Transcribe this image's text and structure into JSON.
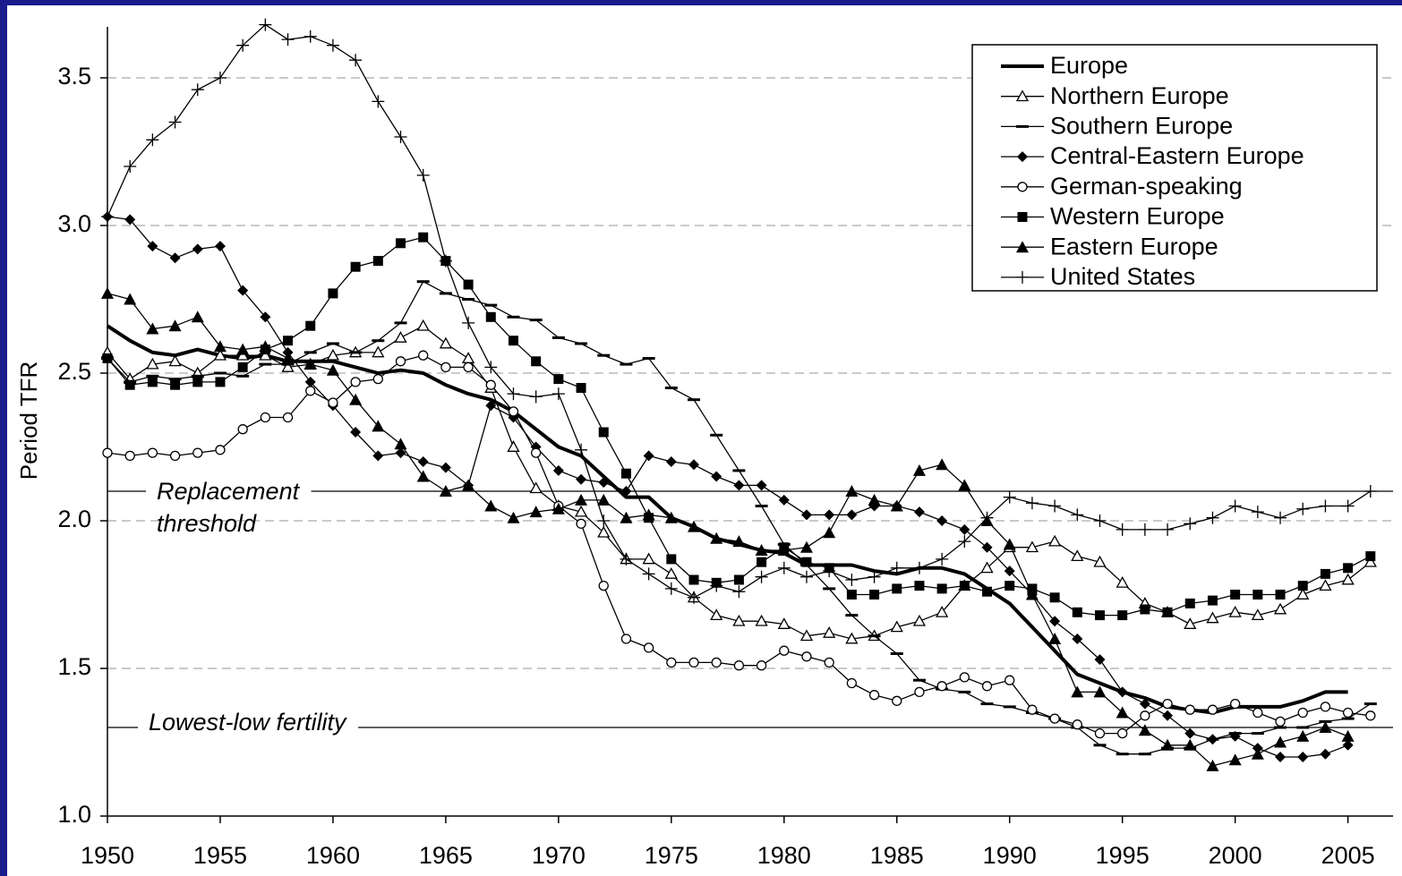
{
  "chart_data": {
    "type": "line",
    "ylabel": "Period TFR",
    "x": [
      1950,
      1951,
      1952,
      1953,
      1954,
      1955,
      1956,
      1957,
      1958,
      1959,
      1960,
      1961,
      1962,
      1963,
      1964,
      1965,
      1966,
      1967,
      1968,
      1969,
      1970,
      1971,
      1972,
      1973,
      1974,
      1975,
      1976,
      1977,
      1978,
      1979,
      1980,
      1981,
      1982,
      1983,
      1984,
      1985,
      1986,
      1987,
      1988,
      1989,
      1990,
      1991,
      1992,
      1993,
      1994,
      1995,
      1996,
      1997,
      1998,
      1999,
      2000,
      2001,
      2002,
      2003,
      2004,
      2005,
      2006
    ],
    "xlim": [
      1950,
      2007
    ],
    "xticks": [
      1950,
      1955,
      1960,
      1965,
      1970,
      1975,
      1980,
      1985,
      1990,
      1995,
      2000,
      2005
    ],
    "ylim": [
      1,
      3.7
    ],
    "yticks": [
      {
        "value": 1,
        "label": "1.0"
      },
      1.5,
      {
        "value": 2,
        "label": "2.0"
      },
      2.5,
      {
        "value": 3,
        "label": "3.0"
      },
      3.5
    ],
    "grid": true,
    "legend": "top-right",
    "reference_lines": [
      {
        "value": 2.1,
        "label": [
          "Replacement",
          "threshold"
        ]
      },
      {
        "value": 1.3,
        "label": [
          "Lowest-low fertility"
        ]
      }
    ],
    "series": [
      {
        "name": "Europe",
        "color": "#000000",
        "marker": "none",
        "width": 4,
        "values": [
          2.66,
          2.61,
          2.57,
          2.56,
          2.58,
          2.56,
          2.55,
          2.56,
          2.54,
          2.54,
          2.54,
          2.52,
          2.5,
          2.51,
          2.5,
          2.46,
          2.43,
          2.41,
          2.37,
          2.31,
          2.25,
          2.22,
          2.15,
          2.08,
          2.08,
          2.01,
          1.98,
          1.94,
          1.92,
          1.9,
          1.89,
          1.85,
          1.85,
          1.85,
          1.83,
          1.82,
          1.84,
          1.84,
          1.82,
          1.77,
          1.72,
          1.64,
          1.56,
          1.48,
          1.45,
          1.42,
          1.4,
          1.37,
          1.36,
          1.35,
          1.37,
          1.37,
          1.37,
          1.39,
          1.42,
          1.42,
          null
        ]
      },
      {
        "name": "Northern Europe",
        "color": "#000000",
        "marker": "triangle-open",
        "width": 1.3,
        "values": [
          2.57,
          2.48,
          2.53,
          2.54,
          2.5,
          2.56,
          2.56,
          2.56,
          2.52,
          2.53,
          2.56,
          2.57,
          2.57,
          2.62,
          2.66,
          2.6,
          2.55,
          2.45,
          2.25,
          2.11,
          2.05,
          2.03,
          1.96,
          1.87,
          1.87,
          1.82,
          1.74,
          1.68,
          1.66,
          1.66,
          1.65,
          1.61,
          1.62,
          1.6,
          1.61,
          1.64,
          1.66,
          1.69,
          1.78,
          1.84,
          1.91,
          1.91,
          1.93,
          1.88,
          1.86,
          1.79,
          1.72,
          1.69,
          1.65,
          1.67,
          1.69,
          1.68,
          1.7,
          1.75,
          1.78,
          1.8,
          1.86
        ]
      },
      {
        "name": "Southern Europe",
        "color": "#000000",
        "marker": "dash",
        "width": 1.3,
        "values": [
          2.55,
          2.47,
          2.49,
          2.48,
          2.49,
          2.5,
          2.49,
          2.53,
          2.53,
          2.57,
          2.6,
          2.57,
          2.61,
          2.67,
          2.81,
          2.77,
          2.75,
          2.73,
          2.69,
          2.68,
          2.62,
          2.6,
          2.56,
          2.53,
          2.55,
          2.45,
          2.41,
          2.29,
          2.17,
          2.05,
          1.92,
          1.85,
          1.77,
          1.68,
          1.61,
          1.55,
          1.46,
          1.43,
          1.42,
          1.38,
          1.37,
          1.35,
          1.33,
          1.3,
          1.24,
          1.21,
          1.21,
          1.23,
          1.23,
          1.26,
          1.28,
          1.28,
          1.3,
          1.3,
          1.32,
          1.33,
          1.38
        ]
      },
      {
        "name": "Central-Eastern Europe",
        "color": "#000000",
        "marker": "diamond",
        "width": 1.3,
        "values": [
          3.03,
          3.02,
          2.93,
          2.89,
          2.92,
          2.93,
          2.78,
          2.69,
          2.57,
          2.47,
          2.39,
          2.3,
          2.22,
          2.23,
          2.2,
          2.18,
          2.12,
          2.39,
          2.35,
          2.25,
          2.17,
          2.14,
          2.13,
          2.1,
          2.22,
          2.2,
          2.19,
          2.15,
          2.12,
          2.12,
          2.07,
          2.02,
          2.02,
          2.02,
          2.05,
          2.05,
          2.03,
          2.0,
          1.97,
          1.91,
          1.83,
          1.75,
          1.66,
          1.6,
          1.53,
          1.42,
          1.38,
          1.34,
          1.28,
          1.26,
          1.27,
          1.23,
          1.2,
          1.2,
          1.21,
          1.24,
          null
        ]
      },
      {
        "name": "German-speaking",
        "color": "#000000",
        "marker": "circle-open",
        "width": 1.3,
        "values": [
          2.23,
          2.22,
          2.23,
          2.22,
          2.23,
          2.24,
          2.31,
          2.35,
          2.35,
          2.44,
          2.4,
          2.47,
          2.48,
          2.54,
          2.56,
          2.52,
          2.52,
          2.46,
          2.37,
          2.23,
          2.05,
          1.99,
          1.78,
          1.6,
          1.57,
          1.52,
          1.52,
          1.52,
          1.51,
          1.51,
          1.56,
          1.54,
          1.52,
          1.45,
          1.41,
          1.39,
          1.42,
          1.44,
          1.47,
          1.44,
          1.46,
          1.36,
          1.33,
          1.31,
          1.28,
          1.28,
          1.34,
          1.38,
          1.36,
          1.36,
          1.38,
          1.35,
          1.32,
          1.35,
          1.37,
          1.35,
          1.34
        ]
      },
      {
        "name": "Western Europe",
        "color": "#000000",
        "marker": "square",
        "width": 1.3,
        "values": [
          2.55,
          2.46,
          2.47,
          2.46,
          2.47,
          2.47,
          2.52,
          2.58,
          2.61,
          2.66,
          2.77,
          2.86,
          2.88,
          2.94,
          2.96,
          2.88,
          2.8,
          2.69,
          2.61,
          2.54,
          2.48,
          2.45,
          2.3,
          2.16,
          2.01,
          1.87,
          1.8,
          1.79,
          1.8,
          1.86,
          1.91,
          1.86,
          1.84,
          1.75,
          1.75,
          1.77,
          1.78,
          1.77,
          1.78,
          1.76,
          1.78,
          1.77,
          1.74,
          1.69,
          1.68,
          1.68,
          1.7,
          1.69,
          1.72,
          1.73,
          1.75,
          1.75,
          1.75,
          1.78,
          1.82,
          1.84,
          1.88
        ]
      },
      {
        "name": "Eastern Europe",
        "color": "#000000",
        "marker": "triangle",
        "width": 1.3,
        "values": [
          2.77,
          2.75,
          2.65,
          2.66,
          2.69,
          2.59,
          2.58,
          2.59,
          2.55,
          2.53,
          2.51,
          2.41,
          2.32,
          2.26,
          2.15,
          2.1,
          2.12,
          2.05,
          2.01,
          2.03,
          2.04,
          2.07,
          2.07,
          2.01,
          2.02,
          2.01,
          1.98,
          1.94,
          1.93,
          1.9,
          1.9,
          1.91,
          1.96,
          2.1,
          2.07,
          2.05,
          2.17,
          2.19,
          2.12,
          2.0,
          1.92,
          1.75,
          1.6,
          1.42,
          1.42,
          1.35,
          1.29,
          1.24,
          1.24,
          1.17,
          1.19,
          1.21,
          1.25,
          1.27,
          1.3,
          1.27,
          null
        ]
      },
      {
        "name": "United States",
        "color": "#000000",
        "marker": "plus",
        "width": 1.3,
        "values": [
          3.03,
          3.2,
          3.29,
          3.35,
          3.46,
          3.5,
          3.61,
          3.68,
          3.63,
          3.64,
          3.61,
          3.56,
          3.42,
          3.3,
          3.17,
          2.88,
          2.67,
          2.52,
          2.43,
          2.42,
          2.43,
          2.24,
          2.0,
          1.87,
          1.82,
          1.77,
          1.74,
          1.78,
          1.76,
          1.81,
          1.84,
          1.81,
          1.83,
          1.8,
          1.81,
          1.84,
          1.84,
          1.87,
          1.93,
          2.01,
          2.08,
          2.06,
          2.05,
          2.02,
          2.0,
          1.97,
          1.97,
          1.97,
          1.99,
          2.01,
          2.05,
          2.03,
          2.01,
          2.04,
          2.05,
          2.05,
          2.1
        ]
      }
    ]
  }
}
